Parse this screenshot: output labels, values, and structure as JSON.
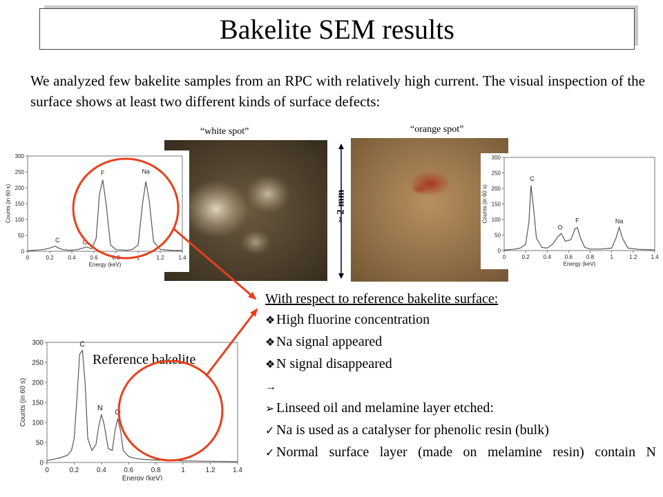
{
  "title": "Bakelite SEM results",
  "intro": "We analyzed few bakelite samples from an RPC with relatively high current. The visual inspection of the surface shows at least two different kinds of surface defects:",
  "photos": {
    "white_label": "“white spot”",
    "orange_label": "“orange spot”",
    "scale_label": "~ 2 mm"
  },
  "reference_label": "Reference bakelite",
  "results": {
    "heading": "With respect to reference bakelite surface:",
    "items": [
      {
        "bullet": "❖",
        "text": "High fluorine concentration"
      },
      {
        "bullet": "❖",
        "text": "Na signal appeared"
      },
      {
        "bullet": "❖",
        "text": "N signal disappeared"
      },
      {
        "bullet": "→",
        "text": ""
      },
      {
        "bullet": "➢",
        "text": "Linseed oil and melamine layer etched:"
      },
      {
        "bullet": "✓",
        "text": "Na is used as a catalyser for phenolic resin (bulk)"
      },
      {
        "bullet": "✓",
        "text": "Normal surface layer (made on melamine resin) contain N"
      }
    ]
  },
  "colors": {
    "annotation": "#e8401c",
    "white_photo": "#5a4a34",
    "orange_photo": "#9b7448"
  },
  "chart_data": [
    {
      "type": "line",
      "name": "white spot spectrum",
      "xlabel": "Energy (keV)",
      "ylabel": "Counts (in 60 s)",
      "xlim": [
        0,
        1.4
      ],
      "ylim": [
        0,
        300
      ],
      "xticks": [
        "0",
        "0.2",
        "0.4",
        "0.6",
        "0.8",
        "1",
        "1.2",
        "1.4"
      ],
      "yticks": [
        "0",
        "50",
        "100",
        "150",
        "200",
        "250",
        "300"
      ],
      "x": [
        0,
        0.05,
        0.1,
        0.15,
        0.2,
        0.25,
        0.28,
        0.32,
        0.38,
        0.45,
        0.5,
        0.53,
        0.58,
        0.62,
        0.65,
        0.68,
        0.71,
        0.75,
        0.8,
        0.85,
        0.9,
        0.95,
        1.0,
        1.04,
        1.07,
        1.1,
        1.14,
        1.2,
        1.3,
        1.4
      ],
      "y": [
        2,
        3,
        4,
        6,
        10,
        16,
        10,
        5,
        3,
        5,
        10,
        14,
        8,
        40,
        180,
        225,
        150,
        20,
        5,
        4,
        3,
        6,
        20,
        150,
        220,
        160,
        30,
        6,
        3,
        2
      ],
      "peak_labels": [
        {
          "text": "C",
          "x": 0.27,
          "y": 28
        },
        {
          "text": "O",
          "x": 0.52,
          "y": 22
        },
        {
          "text": "F",
          "x": 0.68,
          "y": 240
        },
        {
          "text": "Na",
          "x": 1.07,
          "y": 245
        }
      ]
    },
    {
      "type": "line",
      "name": "orange spot spectrum",
      "xlabel": "Energy (keV)",
      "ylabel": "Counts (in 60 s)",
      "xlim": [
        0,
        1.4
      ],
      "ylim": [
        0,
        300
      ],
      "xticks": [
        "0",
        "0.2",
        "0.4",
        "0.6",
        "0.8",
        "1",
        "1.2",
        "1.4"
      ],
      "yticks": [
        "0",
        "50",
        "100",
        "150",
        "200",
        "250",
        "300"
      ],
      "x": [
        0,
        0.05,
        0.1,
        0.15,
        0.2,
        0.23,
        0.25,
        0.27,
        0.3,
        0.35,
        0.4,
        0.45,
        0.5,
        0.53,
        0.57,
        0.62,
        0.66,
        0.68,
        0.71,
        0.75,
        0.8,
        0.9,
        1.0,
        1.04,
        1.07,
        1.1,
        1.15,
        1.25,
        1.4
      ],
      "y": [
        2,
        3,
        5,
        8,
        20,
        90,
        210,
        150,
        40,
        10,
        8,
        20,
        45,
        55,
        30,
        35,
        70,
        75,
        40,
        10,
        5,
        5,
        8,
        40,
        75,
        40,
        8,
        4,
        2
      ],
      "peak_labels": [
        {
          "text": "C",
          "x": 0.26,
          "y": 225
        },
        {
          "text": "O",
          "x": 0.52,
          "y": 68
        },
        {
          "text": "F",
          "x": 0.68,
          "y": 90
        },
        {
          "text": "Na",
          "x": 1.07,
          "y": 88
        }
      ]
    },
    {
      "type": "line",
      "name": "reference bakelite spectrum",
      "xlabel": "Energy (keV)",
      "ylabel": "Counts (in 60 s)",
      "xlim": [
        0,
        1.4
      ],
      "ylim": [
        0,
        300
      ],
      "xticks": [
        "0",
        "0.2",
        "0.4",
        "0.6",
        "0.8",
        "1",
        "1.2",
        "1.4"
      ],
      "yticks": [
        "0",
        "50",
        "100",
        "150",
        "200",
        "250",
        "300"
      ],
      "x": [
        0,
        0.05,
        0.1,
        0.15,
        0.18,
        0.2,
        0.22,
        0.24,
        0.26,
        0.28,
        0.3,
        0.33,
        0.36,
        0.38,
        0.4,
        0.42,
        0.45,
        0.48,
        0.5,
        0.52,
        0.54,
        0.56,
        0.6,
        0.65,
        0.7,
        0.8,
        0.9,
        1.0,
        1.2,
        1.4
      ],
      "y": [
        5,
        8,
        12,
        18,
        30,
        60,
        160,
        270,
        280,
        200,
        60,
        30,
        45,
        90,
        120,
        95,
        35,
        30,
        80,
        110,
        80,
        30,
        15,
        10,
        8,
        6,
        5,
        4,
        3,
        2
      ],
      "peak_labels": [
        {
          "text": "C",
          "x": 0.26,
          "y": 290
        },
        {
          "text": "N",
          "x": 0.39,
          "y": 130
        },
        {
          "text": "O",
          "x": 0.52,
          "y": 120
        }
      ]
    }
  ]
}
